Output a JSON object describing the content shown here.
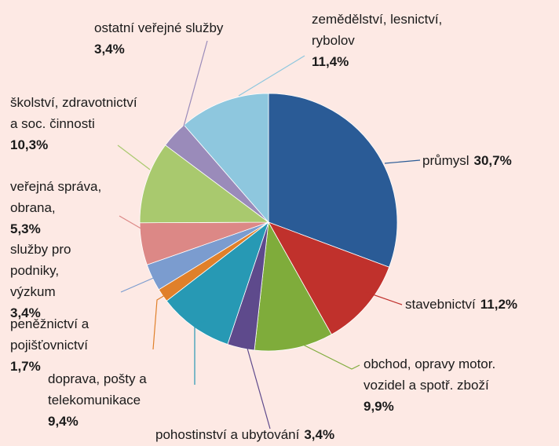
{
  "chart_data": {
    "type": "pie",
    "title": "",
    "slices": [
      {
        "lines": [
          "průmysl"
        ],
        "value_text": "30,7%",
        "value": 30.7,
        "color": "#2a5b96"
      },
      {
        "lines": [
          "stavebnictví"
        ],
        "value_text": "11,2%",
        "value": 11.2,
        "color": "#c0312c"
      },
      {
        "lines": [
          "obchod, opravy motor.",
          "vozidel a spotř. zboží"
        ],
        "value_text": "9,9%",
        "value": 9.9,
        "color": "#7fac3b"
      },
      {
        "lines": [
          "pohostinství a ubytování"
        ],
        "value_text": "3,4%",
        "value": 3.4,
        "color": "#5e4a8c"
      },
      {
        "lines": [
          "doprava, pošty a",
          "telekomunikace"
        ],
        "value_text": "9,4%",
        "value": 9.4,
        "color": "#2799b4"
      },
      {
        "lines": [
          "peněžnictví a",
          "pojišťovnictví"
        ],
        "value_text": "1,7%",
        "value": 1.7,
        "color": "#e0802a"
      },
      {
        "lines": [
          "služby pro",
          "podniky,",
          "výzkum"
        ],
        "value_text": "3,4%",
        "value": 3.4,
        "color": "#7b9ccf"
      },
      {
        "lines": [
          "veřejná správa,",
          "obrana,"
        ],
        "value_text": "5,3%",
        "value": 5.3,
        "color": "#dc8886"
      },
      {
        "lines": [
          "školství, zdravotnictví",
          "a soc. činnosti"
        ],
        "value_text": "10,3%",
        "value": 10.3,
        "color": "#a9c96e"
      },
      {
        "lines": [
          "ostatní veřejné služby"
        ],
        "value_text": "3,4%",
        "value": 3.4,
        "color": "#9a8bba"
      },
      {
        "lines": [
          "zemědělství, lesnictví,",
          "rybolov"
        ],
        "value_text": "11,4%",
        "value": 11.4,
        "color": "#8ec7de"
      }
    ]
  }
}
